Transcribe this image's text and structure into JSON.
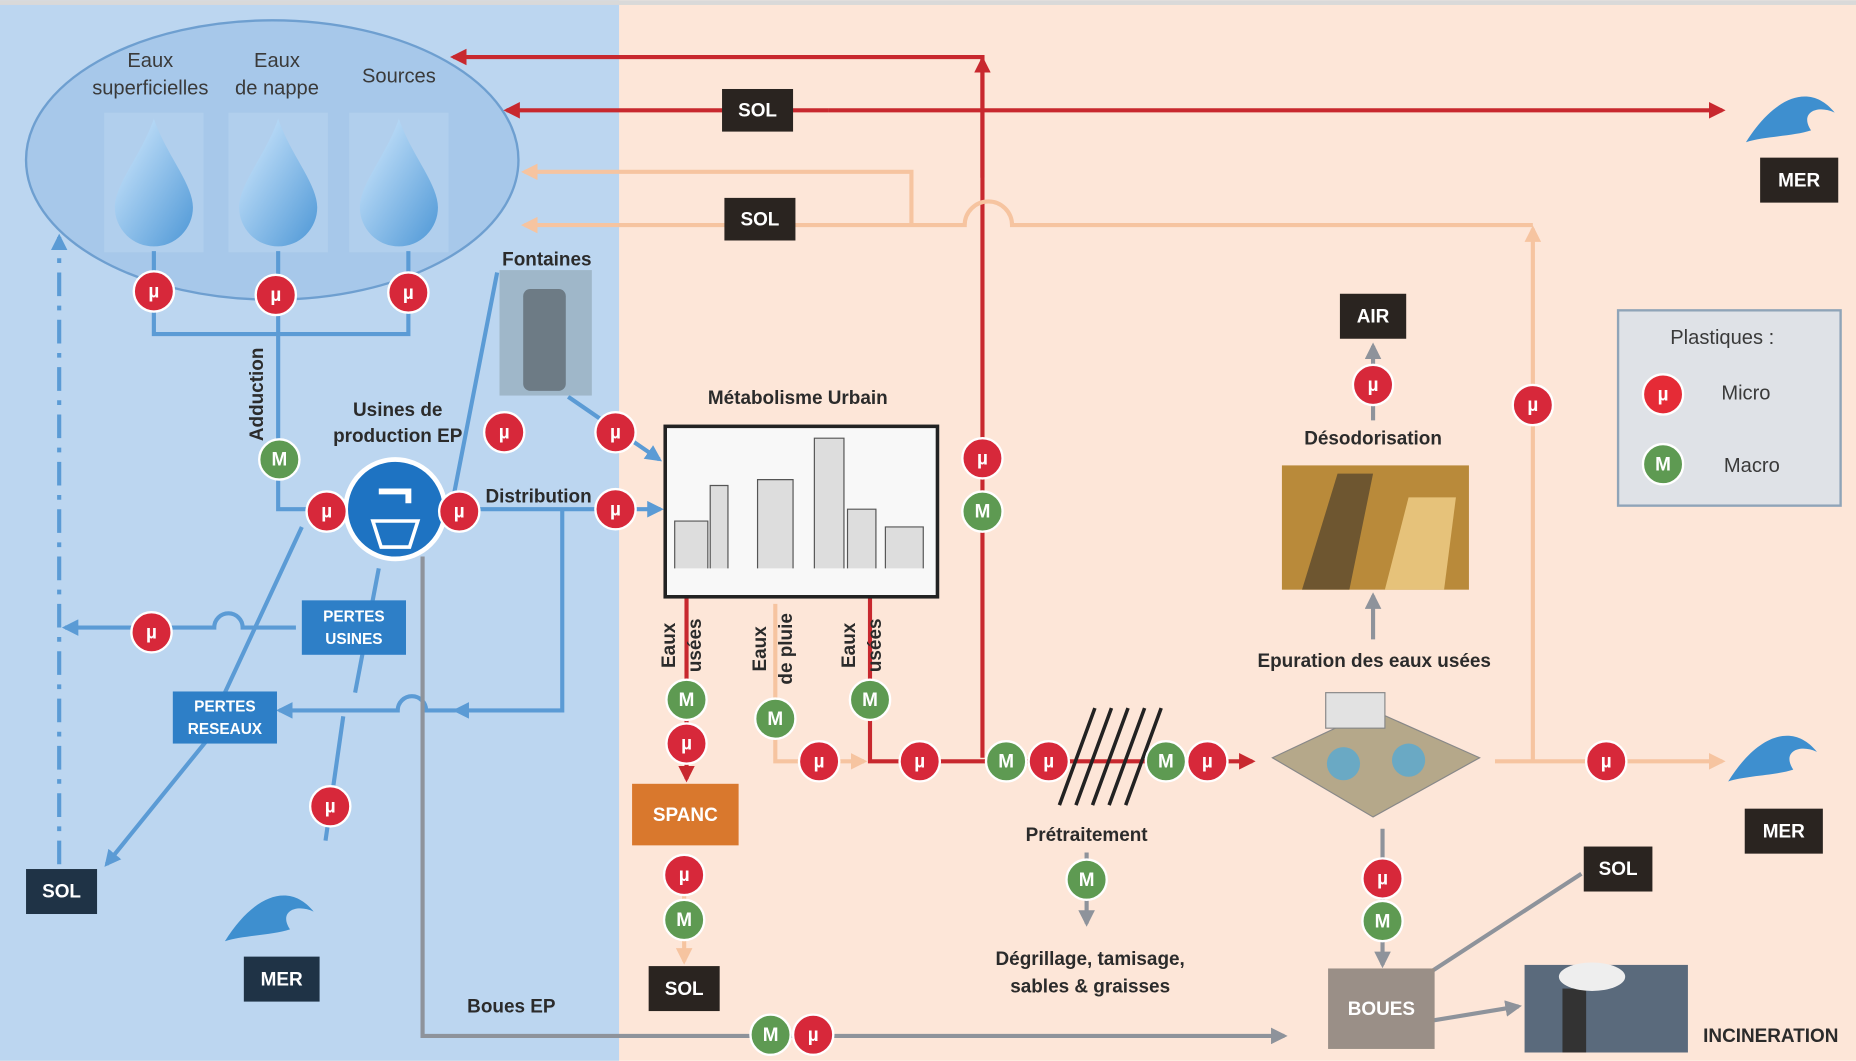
{
  "sources": [
    {
      "lines": [
        "Eaux",
        "superficielles"
      ]
    },
    {
      "lines": [
        "Eaux",
        "de nappe"
      ]
    },
    {
      "lines": [
        "Sources"
      ]
    }
  ],
  "fontaines": "Fontaines",
  "adduction": "Adduction",
  "usines": [
    "Usines de",
    "production EP"
  ],
  "distribution": "Distribution",
  "metabolisme": "Métabolisme Urbain",
  "eaux_usees": [
    "Eaux",
    "usées"
  ],
  "eaux_pluie": [
    "Eaux",
    "de pluie"
  ],
  "desodorisation": "Désodorisation",
  "epuration": "Epuration des eaux usées",
  "pretraitement": "Prétraitement",
  "degrillage": [
    "Dégrillage, tamisage,",
    "sables & graisses"
  ],
  "boues_ep": "Boues EP",
  "incineration": "INCINERATION",
  "boxes": [
    {
      "label": [
        "SOL"
      ]
    },
    {
      "label": [
        "SOL"
      ]
    },
    {
      "label": [
        "MER"
      ]
    },
    {
      "label": [
        "AIR"
      ]
    },
    {
      "label": [
        "SOL"
      ]
    },
    {
      "label": [
        "MER"
      ]
    },
    {
      "label": [
        "SOL"
      ]
    },
    {
      "label": [
        "MER"
      ]
    },
    {
      "label": [
        "SOL"
      ]
    },
    {
      "label": [
        "SPANC"
      ]
    },
    {
      "label": [
        "BOUES"
      ]
    },
    {
      "label": [
        "PERTES",
        "USINES"
      ]
    },
    {
      "label": [
        "PERTES",
        "RESEAUX"
      ]
    }
  ],
  "symbols": {
    "micro": "µ",
    "macro": "M"
  },
  "legend": {
    "title": "Plastiques :",
    "micro": "Micro",
    "macro": "Macro"
  }
}
